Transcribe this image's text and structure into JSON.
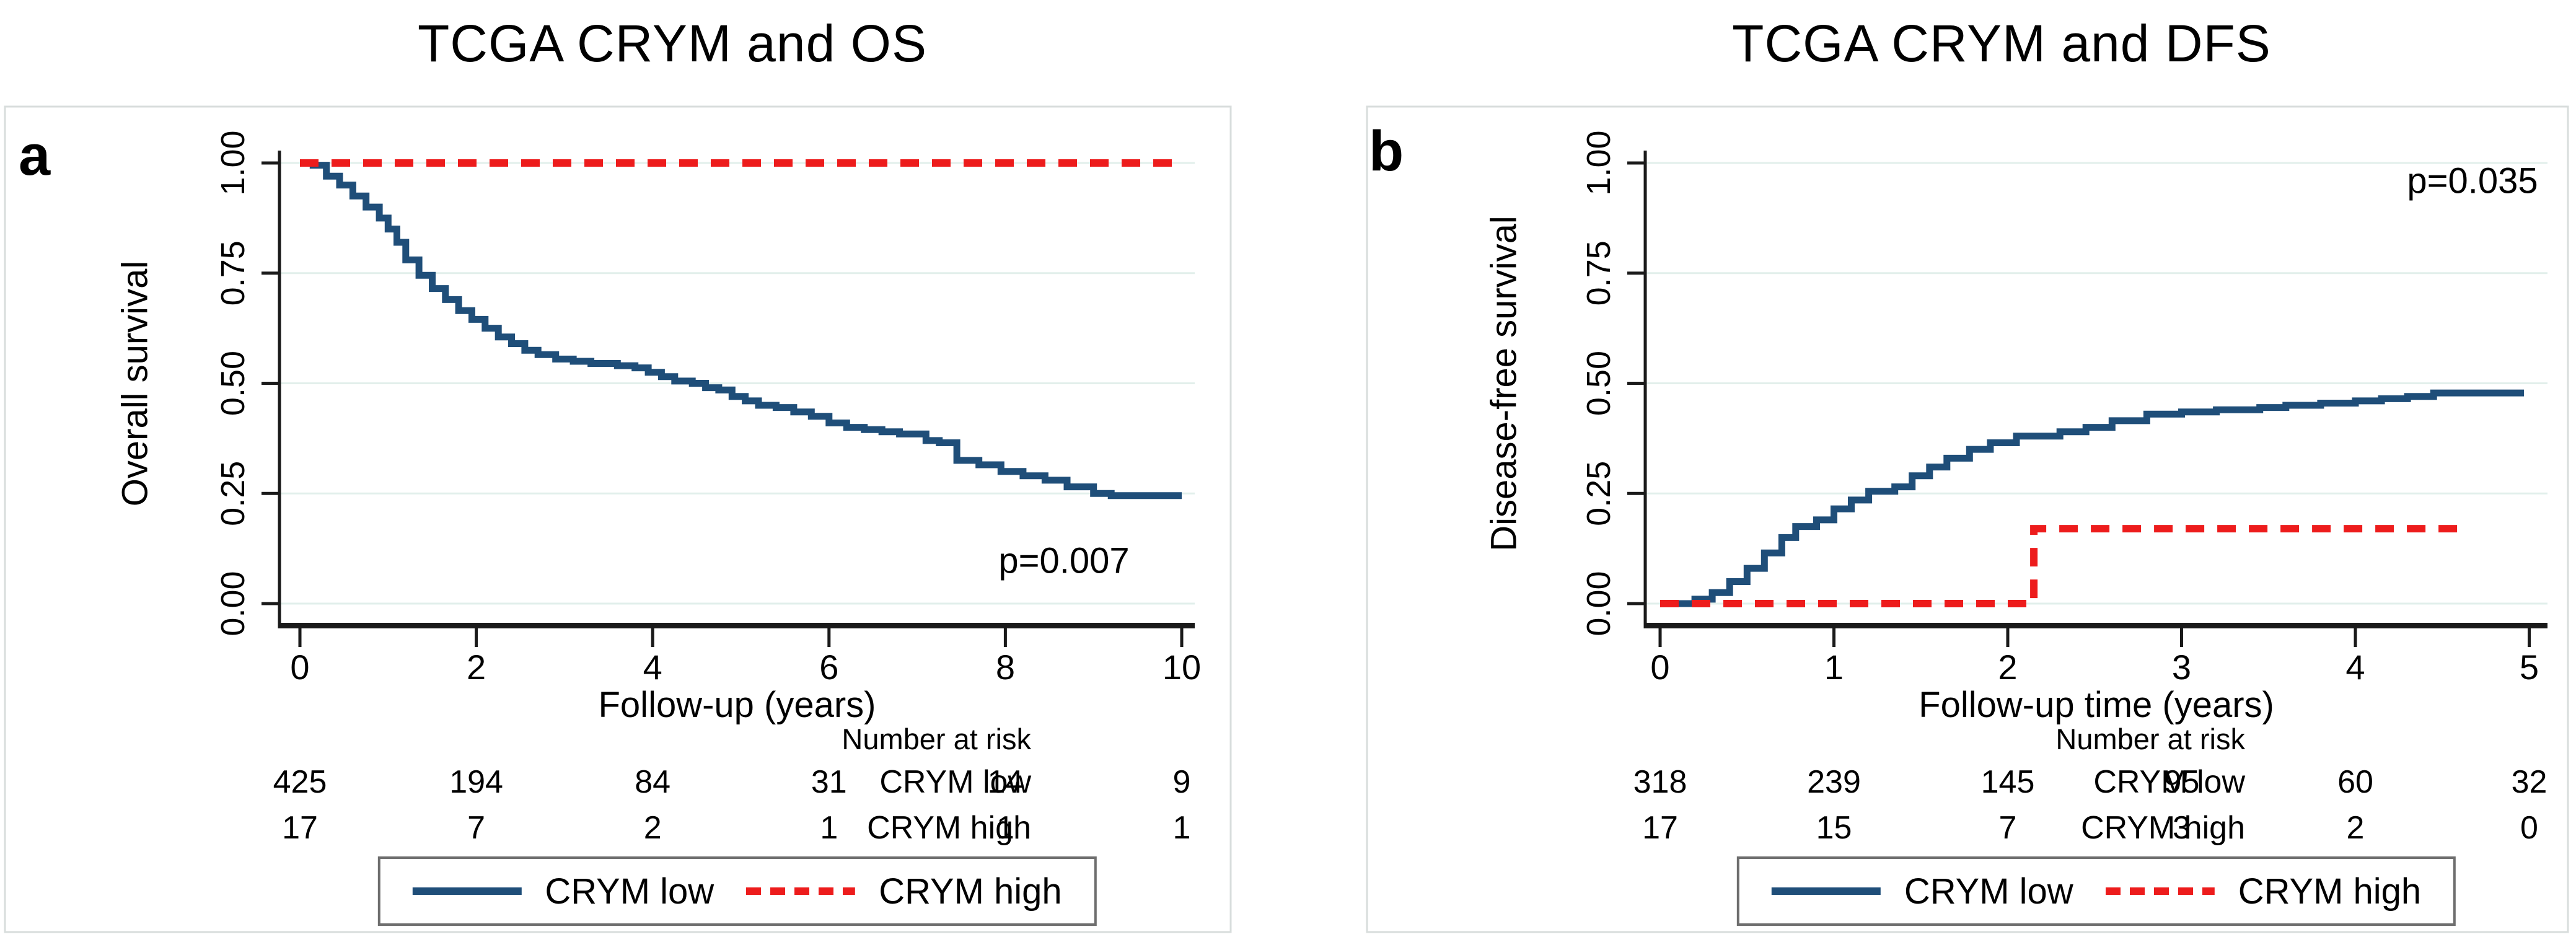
{
  "accent_colors": {
    "crym_low_blue": "#1f4e79",
    "crym_high_red": "#ed1c1c",
    "gridline": "#e2efeb",
    "axis": "#1a1a1a",
    "panel_frame": "#d8dddc",
    "legend_border": "#6e6e6e"
  },
  "chart_data": [
    {
      "type": "line",
      "subtype": "kaplan-meier-step",
      "panel": "a",
      "title": "TCGA CRYM and OS",
      "annotation": "p=0.007",
      "xlabel": "Follow-up (years)",
      "ylabel": "Overall survival",
      "xlim": [
        0,
        10
      ],
      "ylim": [
        0.0,
        1.0
      ],
      "xticks": [
        0,
        2,
        4,
        6,
        8,
        10
      ],
      "x_tick_labels": [
        "0",
        "2",
        "4",
        "6",
        "8",
        "10"
      ],
      "yticks": [
        0.0,
        0.25,
        0.5,
        0.75,
        1.0
      ],
      "y_tick_labels": [
        "0.00",
        "0.25",
        "0.50",
        "0.75",
        "1.00"
      ],
      "grid": true,
      "legend_position": "bottom",
      "series": [
        {
          "name": "CRYM low",
          "color": "#1f4e79",
          "style": "solid",
          "points": [
            [
              0,
              1.0
            ],
            [
              0.15,
              0.995
            ],
            [
              0.3,
              0.97
            ],
            [
              0.45,
              0.95
            ],
            [
              0.6,
              0.925
            ],
            [
              0.75,
              0.9
            ],
            [
              0.9,
              0.875
            ],
            [
              1.0,
              0.85
            ],
            [
              1.1,
              0.82
            ],
            [
              1.2,
              0.78
            ],
            [
              1.35,
              0.745
            ],
            [
              1.5,
              0.715
            ],
            [
              1.65,
              0.69
            ],
            [
              1.8,
              0.665
            ],
            [
              1.95,
              0.645
            ],
            [
              2.1,
              0.625
            ],
            [
              2.25,
              0.605
            ],
            [
              2.4,
              0.59
            ],
            [
              2.55,
              0.575
            ],
            [
              2.7,
              0.565
            ],
            [
              2.9,
              0.555
            ],
            [
              3.1,
              0.55
            ],
            [
              3.3,
              0.545
            ],
            [
              3.6,
              0.54
            ],
            [
              3.8,
              0.535
            ],
            [
              3.95,
              0.525
            ],
            [
              4.1,
              0.515
            ],
            [
              4.25,
              0.505
            ],
            [
              4.45,
              0.5
            ],
            [
              4.6,
              0.49
            ],
            [
              4.75,
              0.485
            ],
            [
              4.9,
              0.47
            ],
            [
              5.05,
              0.46
            ],
            [
              5.2,
              0.45
            ],
            [
              5.4,
              0.445
            ],
            [
              5.6,
              0.435
            ],
            [
              5.8,
              0.425
            ],
            [
              6.0,
              0.41
            ],
            [
              6.2,
              0.4
            ],
            [
              6.4,
              0.395
            ],
            [
              6.6,
              0.39
            ],
            [
              6.8,
              0.385
            ],
            [
              7.1,
              0.37
            ],
            [
              7.25,
              0.365
            ],
            [
              7.45,
              0.325
            ],
            [
              7.7,
              0.315
            ],
            [
              7.95,
              0.3
            ],
            [
              8.2,
              0.29
            ],
            [
              8.45,
              0.28
            ],
            [
              8.7,
              0.265
            ],
            [
              9.0,
              0.25
            ],
            [
              9.2,
              0.245
            ],
            [
              10.0,
              0.245
            ]
          ]
        },
        {
          "name": "CRYM high",
          "color": "#ed1c1c",
          "style": "dashed",
          "points": [
            [
              0,
              1.0
            ],
            [
              10,
              1.0
            ]
          ]
        }
      ],
      "number_at_risk": {
        "header": "Number at risk",
        "times": [
          0,
          2,
          4,
          6,
          8,
          10
        ],
        "rows": [
          {
            "label": "CRYM low",
            "counts": [
              "425",
              "194",
              "84",
              "31",
              "14",
              "9"
            ]
          },
          {
            "label": "CRYM high",
            "counts": [
              "17",
              "7",
              "2",
              "1",
              "1",
              "1"
            ]
          }
        ]
      }
    },
    {
      "type": "line",
      "subtype": "kaplan-meier-step",
      "panel": "b",
      "title": "TCGA CRYM and DFS",
      "annotation": "p=0.035",
      "xlabel": "Follow-up time (years)",
      "ylabel": "Disease-free survival",
      "xlim": [
        0,
        5
      ],
      "ylim": [
        0.0,
        1.0
      ],
      "xticks": [
        0,
        1,
        2,
        3,
        4,
        5
      ],
      "x_tick_labels": [
        "0",
        "1",
        "2",
        "3",
        "4",
        "5"
      ],
      "yticks": [
        0.0,
        0.25,
        0.5,
        0.75,
        1.0
      ],
      "y_tick_labels": [
        "0.00",
        "0.25",
        "0.50",
        "0.75",
        "1.00"
      ],
      "grid": true,
      "legend_position": "bottom",
      "series": [
        {
          "name": "CRYM low",
          "color": "#1f4e79",
          "style": "solid",
          "points": [
            [
              0.1,
              0.0
            ],
            [
              0.2,
              0.01
            ],
            [
              0.3,
              0.025
            ],
            [
              0.4,
              0.05
            ],
            [
              0.5,
              0.08
            ],
            [
              0.6,
              0.115
            ],
            [
              0.7,
              0.15
            ],
            [
              0.78,
              0.175
            ],
            [
              0.9,
              0.19
            ],
            [
              1.0,
              0.215
            ],
            [
              1.1,
              0.235
            ],
            [
              1.2,
              0.255
            ],
            [
              1.35,
              0.265
            ],
            [
              1.45,
              0.29
            ],
            [
              1.55,
              0.31
            ],
            [
              1.65,
              0.33
            ],
            [
              1.78,
              0.35
            ],
            [
              1.9,
              0.365
            ],
            [
              2.05,
              0.38
            ],
            [
              2.3,
              0.39
            ],
            [
              2.45,
              0.4
            ],
            [
              2.6,
              0.415
            ],
            [
              2.8,
              0.43
            ],
            [
              3.0,
              0.435
            ],
            [
              3.2,
              0.44
            ],
            [
              3.45,
              0.445
            ],
            [
              3.6,
              0.45
            ],
            [
              3.8,
              0.455
            ],
            [
              4.0,
              0.46
            ],
            [
              4.15,
              0.465
            ],
            [
              4.3,
              0.47
            ],
            [
              4.45,
              0.478
            ],
            [
              4.97,
              0.478
            ]
          ]
        },
        {
          "name": "CRYM high",
          "color": "#ed1c1c",
          "style": "dashed",
          "points": [
            [
              0,
              0.0
            ],
            [
              2.15,
              0.0
            ],
            [
              2.15,
              0.17
            ],
            [
              4.62,
              0.17
            ]
          ]
        }
      ],
      "number_at_risk": {
        "header": "Number at risk",
        "times": [
          0,
          1,
          2,
          3,
          4,
          5
        ],
        "rows": [
          {
            "label": "CRYM low",
            "counts": [
              "318",
              "239",
              "145",
              "95",
              "60",
              "32"
            ]
          },
          {
            "label": "CRYM high",
            "counts": [
              "17",
              "15",
              "7",
              "3",
              "2",
              "0"
            ]
          }
        ]
      }
    }
  ]
}
